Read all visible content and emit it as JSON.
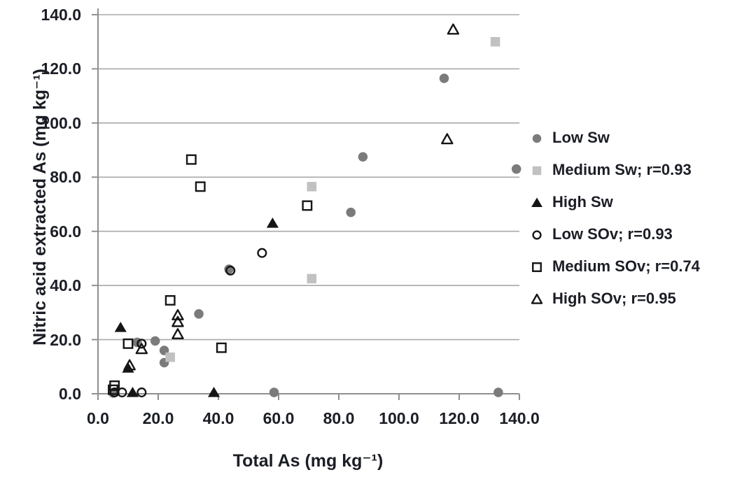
{
  "figure": {
    "x_axis_title": "Total As (mg kg⁻¹)",
    "y_axis_title": "Nitric acid extracted  As (mg kg⁻¹)"
  },
  "chart_data": {
    "type": "scatter",
    "title": "",
    "xlabel": "Total As (mg kg⁻¹)",
    "ylabel": "Nitric acid extracted As (mg kg⁻¹)",
    "xlim": [
      0,
      140
    ],
    "ylim": [
      0,
      140
    ],
    "tick_values": [
      0,
      20,
      40,
      60,
      80,
      100,
      120,
      140
    ],
    "x_tick_labels": [
      "0.0",
      "20.0",
      "40.0",
      "60.0",
      "80.0",
      "100.0",
      "120.0",
      "140.0"
    ],
    "y_tick_labels": [
      "0.0",
      "20.0",
      "40.0",
      "60.0",
      "80.0",
      "100.0",
      "120.0",
      "140.0"
    ],
    "grid": "horizontal",
    "legend_position": "right",
    "colors": {
      "gray_fill": "#7b7b7b",
      "light_gray_fill": "#c1c1c1",
      "black": "#151515",
      "grid": "#a8a8a8",
      "axis": "#909090",
      "text": "#1c1e26"
    },
    "series": [
      {
        "name": "Low Sw",
        "marker": "circle",
        "points": [
          [
            5,
            0.3
          ],
          [
            13,
            19
          ],
          [
            19,
            19.5
          ],
          [
            22,
            16
          ],
          [
            22,
            11.5
          ],
          [
            33.5,
            29.5
          ],
          [
            43.5,
            46
          ],
          [
            58.5,
            0.5
          ],
          [
            84,
            67
          ],
          [
            88,
            87.5
          ],
          [
            115,
            116.5
          ],
          [
            133,
            0.5
          ],
          [
            139,
            83
          ]
        ]
      },
      {
        "name": "Medium Sw; r=0.93",
        "marker": "square",
        "points": [
          [
            24,
            13.5
          ],
          [
            71,
            42.5
          ],
          [
            71,
            76.5
          ],
          [
            132,
            130
          ]
        ]
      },
      {
        "name": "High Sw",
        "marker": "triangle",
        "points": [
          [
            7.5,
            24.5
          ],
          [
            10,
            9.5
          ],
          [
            11.5,
            0.5
          ],
          [
            38.5,
            0.5
          ],
          [
            58,
            63
          ]
        ]
      },
      {
        "name": "Low SOv; r=0.93",
        "marker": "open-circle",
        "points": [
          [
            5.5,
            0.5
          ],
          [
            8,
            0.5
          ],
          [
            14.5,
            0.5
          ],
          [
            14.5,
            18.5
          ],
          [
            44,
            45.5
          ],
          [
            54.5,
            52
          ]
        ]
      },
      {
        "name": "Medium SOv; r=0.74",
        "marker": "open-square",
        "points": [
          [
            5,
            1.5
          ],
          [
            5.5,
            3
          ],
          [
            10,
            18.5
          ],
          [
            24,
            34.5
          ],
          [
            31,
            86.5
          ],
          [
            34,
            76.5
          ],
          [
            41,
            17
          ],
          [
            69.5,
            69.5
          ]
        ]
      },
      {
        "name": "High SOv; r=0.95",
        "marker": "open-triangle",
        "points": [
          [
            10.5,
            10.5
          ],
          [
            14.5,
            16.5
          ],
          [
            26.5,
            22
          ],
          [
            26.5,
            26.5
          ],
          [
            26.5,
            29
          ],
          [
            116,
            94
          ],
          [
            118,
            134.5
          ]
        ]
      }
    ]
  }
}
